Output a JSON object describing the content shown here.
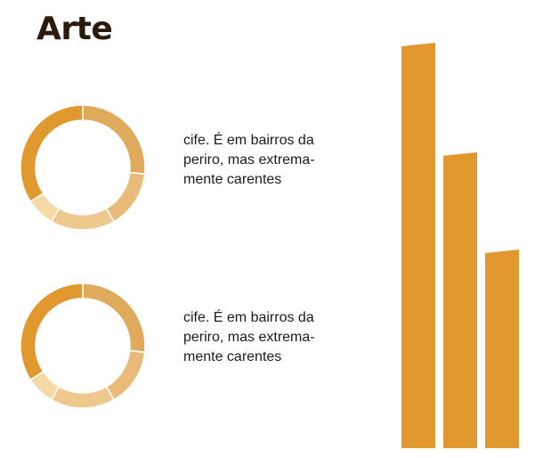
{
  "chart_data": [
    {
      "type": "pie",
      "title": "",
      "slices": [
        32,
        18,
        20,
        9,
        41
      ],
      "colors": [
        "#e0aa5c",
        "#e9bb7a",
        "#efc88e",
        "#f4d9a9",
        "#e0982f"
      ],
      "caption_lines": [
        "cife. É em bairros da",
        "periro, mas extrema-",
        "mente carentes"
      ]
    },
    {
      "type": "pie",
      "title": "",
      "slices": [
        32,
        18,
        20,
        9,
        41
      ],
      "colors": [
        "#e0aa5c",
        "#e9bb7a",
        "#efc88e",
        "#f4d9a9",
        "#e0982f"
      ],
      "caption_lines": [
        "cife. É em bairros da",
        "periro, mas extrema-",
        "mente carentes"
      ]
    },
    {
      "type": "bar",
      "title": "",
      "categories": [
        "",
        "",
        ""
      ],
      "values": [
        100,
        73,
        49
      ],
      "ylim": [
        0,
        100
      ],
      "color": "#e0982f"
    }
  ],
  "page": {
    "title": "Arte"
  }
}
